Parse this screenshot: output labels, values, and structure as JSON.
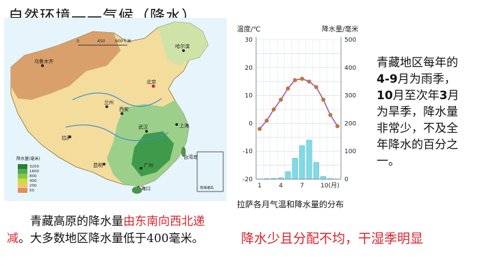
{
  "slide": {
    "title": "自然环境——气候（降水）",
    "chart_caption": "拉萨各月气温和降水量的分布",
    "side_note": {
      "line1": "青藏地区每年的",
      "line2_bold": "4-9",
      "line2_rest": "月为雨季，",
      "line3_bold": "10",
      "line3_mid": "月至次年",
      "line3_bold2": "3",
      "line3_rest": "月",
      "line4": "为旱季，降水量",
      "line5": "非常少，不及全",
      "line6": "年降水的百分之",
      "line7": "一。"
    },
    "bottom_left": {
      "pre": "青藏高原的降水量",
      "highlight": "由东南向西北递减",
      "post": "。大多数地区降水量低于400毫米。"
    },
    "bottom_right": "降水少且分配不均，干湿季明显"
  },
  "map": {
    "scale_labels": [
      "0",
      "450",
      "900千米"
    ],
    "cities": [
      "乌鲁木齐",
      "哈尔滨",
      "北京",
      "兰州",
      "西安",
      "拉萨",
      "上海",
      "武汉",
      "昆明",
      "广州",
      "海口",
      "台湾岛"
    ],
    "inset_label": "南海诸岛",
    "legend": {
      "title": "降水量(毫米)",
      "classes": [
        "3200",
        "1600",
        "800",
        "400",
        "200",
        "50"
      ],
      "colors": [
        "#2e7d32",
        "#4caf50",
        "#8bc34a",
        "#cddc39",
        "#f0c66d",
        "#e08e5b"
      ]
    },
    "colors": {
      "sea": "#e6f4fb",
      "dry": "#d9a06b",
      "semi": "#f3dc9c",
      "wet": "#9ccf8a",
      "very_wet": "#3f9b4b"
    }
  },
  "chart_data": {
    "type": "line+bar",
    "title": "",
    "left_axis_label": "温度/℃",
    "right_axis_label": "降水量/毫米",
    "temperature_range": [
      -20,
      30
    ],
    "temperature_ticks": [
      30,
      20,
      10,
      0,
      -10,
      -20
    ],
    "precipitation_range": [
      0,
      500
    ],
    "precipitation_ticks": [
      500,
      400,
      300,
      200,
      100,
      0
    ],
    "x_tick_labels": [
      "1",
      "4",
      "7",
      "10(月)"
    ],
    "months": [
      1,
      2,
      3,
      4,
      5,
      6,
      7,
      8,
      9,
      10,
      11,
      12
    ],
    "series": [
      {
        "kind": "line",
        "axis": "left",
        "values": [
          -2,
          1,
          5,
          8.5,
          12.5,
          15.5,
          16,
          15,
          13,
          8.5,
          3,
          -1
        ],
        "color": "#9b59b6",
        "marker_color": "#c0763a"
      },
      {
        "kind": "bar",
        "axis": "right",
        "values": [
          1,
          2,
          3,
          5,
          27,
          75,
          120,
          140,
          60,
          10,
          2,
          1
        ],
        "color": "#7fdbe6"
      }
    ],
    "grid": true
  }
}
